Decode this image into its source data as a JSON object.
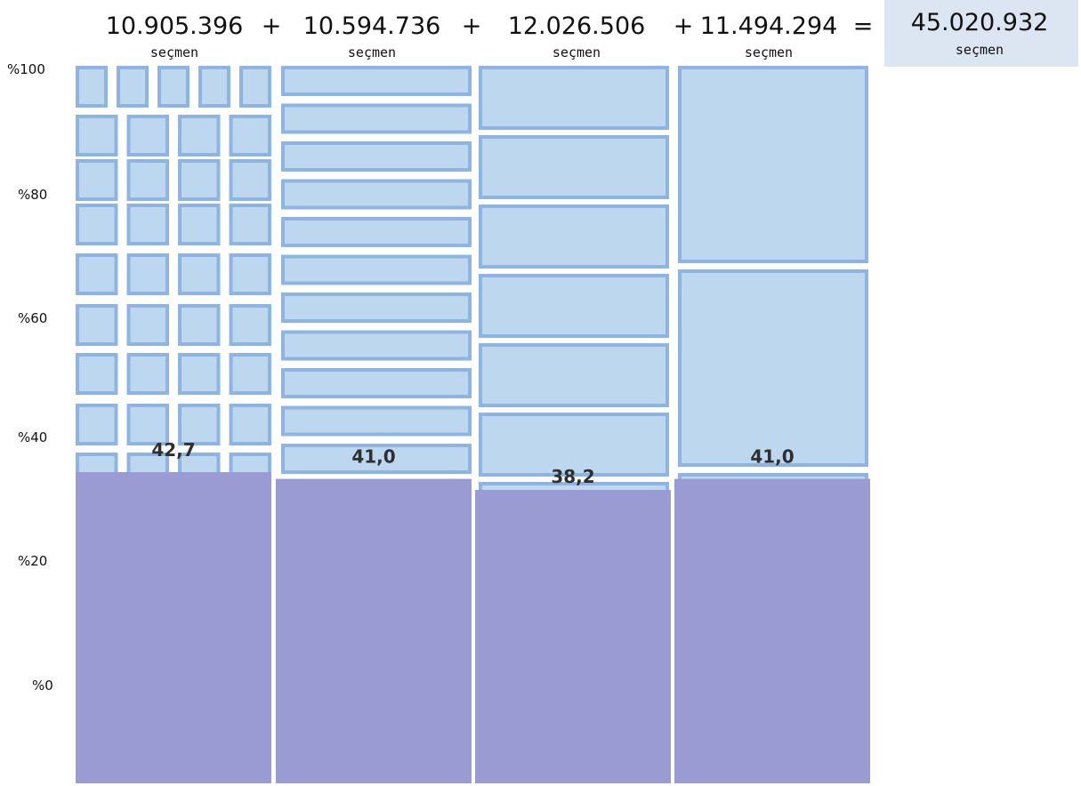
{
  "header": {
    "plus": "+",
    "equals": "=",
    "total": "45.020.932",
    "total_unit": "seçmen"
  },
  "colors": {
    "cell_fill": "#bdd7ee",
    "cell_stroke": "#8eb4e3",
    "bar_fill": "#9b9bd3",
    "total_box": "#dce6f2"
  },
  "chart_data": {
    "type": "bar",
    "categories": [
      "10.905.396",
      "10.594.736",
      "12.026.506",
      "11.494.294"
    ],
    "category_sublabels": [
      "seçmen",
      "seçmen",
      "seçmen",
      "seçmen"
    ],
    "values": [
      42.7,
      41.0,
      38.2,
      41.0
    ],
    "value_labels": [
      "42,7",
      "41,0",
      "38,2",
      "41,0"
    ],
    "y_ticks": [
      "%100",
      "%80",
      "%60",
      "%40",
      "%20",
      "%0"
    ],
    "ylim": [
      0,
      100
    ],
    "grid": false,
    "legend": "none"
  }
}
